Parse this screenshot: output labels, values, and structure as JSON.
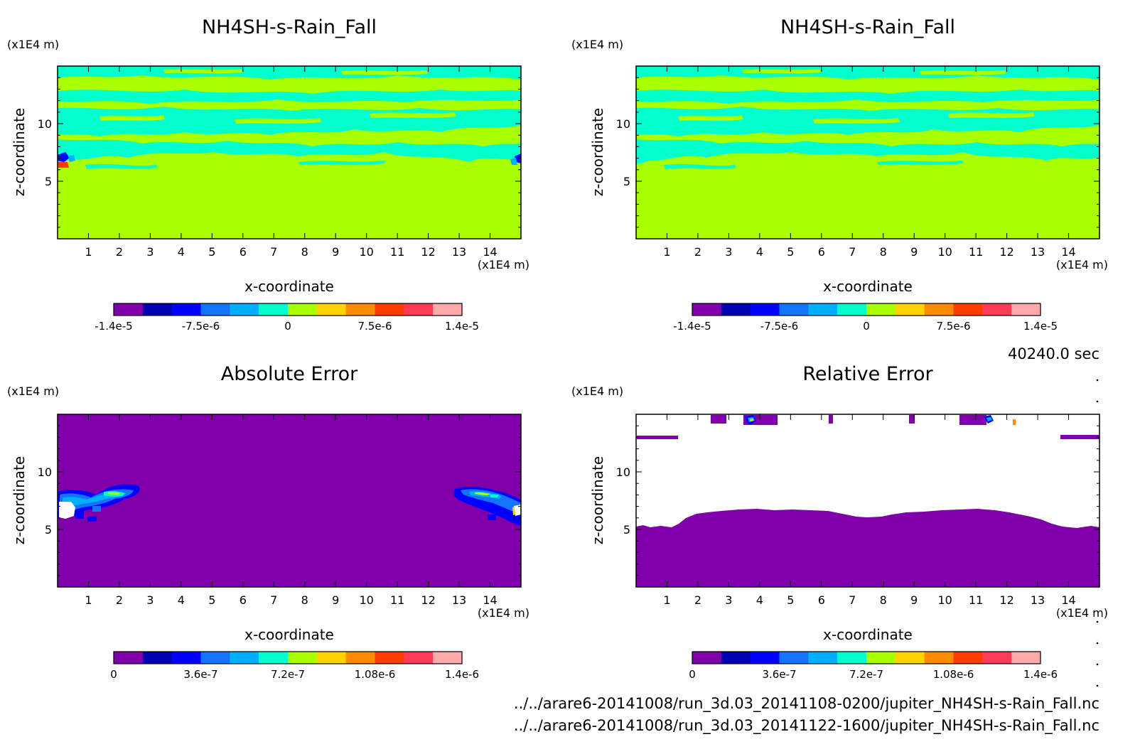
{
  "time_label": "40240.0 sec",
  "file_paths": [
    "../../arare6-20141008/run_3d.03_20141108-0200/jupiter_NH4SH-s-Rain_Fall.nc",
    "../../arare6-20141008/run_3d.03_20141122-1600/jupiter_NH4SH-s-Rain_Fall.nc"
  ],
  "chart_data": [
    {
      "type": "heatmap",
      "title": "NH4SH-s-Rain_Fall",
      "xlabel": "x-coordinate",
      "ylabel": "z-coordinate",
      "x_unit": "(x1E4 m)",
      "y_unit": "(x1E4 m)",
      "x_ticks": [
        "1",
        "2",
        "3",
        "4",
        "5",
        "6",
        "7",
        "8",
        "9",
        "10",
        "11",
        "12",
        "13",
        "14"
      ],
      "y_ticks": [
        "5",
        "10"
      ],
      "xlim": [
        0,
        15
      ],
      "ylim": [
        0,
        15
      ],
      "colorbar": {
        "colors": [
          "#7f00aa",
          "#0000b0",
          "#0000ff",
          "#1473ff",
          "#00b0ff",
          "#00ffcc",
          "#aaff00",
          "#ffd200",
          "#ff8c00",
          "#ff3c00",
          "#ff3c55",
          "#ffaaaa"
        ],
        "labels": [
          "-1.4e-5",
          "-7.5e-6",
          "0",
          "7.5e-6",
          "1.4e-5"
        ],
        "range": [
          -1.4e-05,
          1.4e-05
        ]
      }
    },
    {
      "type": "heatmap",
      "title": "NH4SH-s-Rain_Fall",
      "xlabel": "x-coordinate",
      "ylabel": "z-coordinate",
      "x_unit": "(x1E4 m)",
      "y_unit": "(x1E4 m)",
      "x_ticks": [
        "1",
        "2",
        "3",
        "4",
        "5",
        "6",
        "7",
        "8",
        "9",
        "10",
        "11",
        "12",
        "13",
        "14"
      ],
      "y_ticks": [
        "5",
        "10"
      ],
      "xlim": [
        0,
        15
      ],
      "ylim": [
        0,
        15
      ],
      "colorbar": {
        "colors": [
          "#7f00aa",
          "#0000b0",
          "#0000ff",
          "#1473ff",
          "#00b0ff",
          "#00ffcc",
          "#aaff00",
          "#ffd200",
          "#ff8c00",
          "#ff3c00",
          "#ff3c55",
          "#ffaaaa"
        ],
        "labels": [
          "-1.4e-5",
          "-7.5e-6",
          "0",
          "7.5e-6",
          "1.4e-5"
        ],
        "range": [
          -1.4e-05,
          1.4e-05
        ]
      }
    },
    {
      "type": "heatmap",
      "title": "Absolute Error",
      "xlabel": "x-coordinate",
      "ylabel": "z-coordinate",
      "x_unit": "(x1E4 m)",
      "y_unit": "(x1E4 m)",
      "x_ticks": [
        "1",
        "2",
        "3",
        "4",
        "5",
        "6",
        "7",
        "8",
        "9",
        "10",
        "11",
        "12",
        "13",
        "14"
      ],
      "y_ticks": [
        "5",
        "10"
      ],
      "xlim": [
        0,
        15
      ],
      "ylim": [
        0,
        15
      ],
      "colorbar": {
        "colors": [
          "#7f00aa",
          "#0000b0",
          "#0000ff",
          "#1473ff",
          "#00b0ff",
          "#00ffcc",
          "#aaff00",
          "#ffd200",
          "#ff8c00",
          "#ff3c00",
          "#ff3c55",
          "#ffaaaa"
        ],
        "labels": [
          "0",
          "3.6e-7",
          "7.2e-7",
          "1.08e-6",
          "1.4e-6"
        ],
        "range": [
          0,
          1.4e-06
        ]
      }
    },
    {
      "type": "heatmap",
      "title": "Relative Error",
      "xlabel": "x-coordinate",
      "ylabel": "z-coordinate",
      "x_unit": "(x1E4 m)",
      "y_unit": "(x1E4 m)",
      "x_ticks": [
        "1",
        "2",
        "3",
        "4",
        "5",
        "6",
        "7",
        "8",
        "9",
        "10",
        "11",
        "12",
        "13",
        "14"
      ],
      "y_ticks": [
        "5",
        "10"
      ],
      "xlim": [
        0,
        15
      ],
      "ylim": [
        0,
        15
      ],
      "colorbar": {
        "colors": [
          "#7f00aa",
          "#0000b0",
          "#0000ff",
          "#1473ff",
          "#00b0ff",
          "#00ffcc",
          "#aaff00",
          "#ffd200",
          "#ff8c00",
          "#ff3c00",
          "#ff3c55",
          "#ffaaaa"
        ],
        "labels": [
          "0",
          "3.6e-7",
          "7.2e-7",
          "1.08e-6",
          "1.4e-6"
        ],
        "range": [
          0,
          1.4e-06
        ]
      }
    }
  ]
}
